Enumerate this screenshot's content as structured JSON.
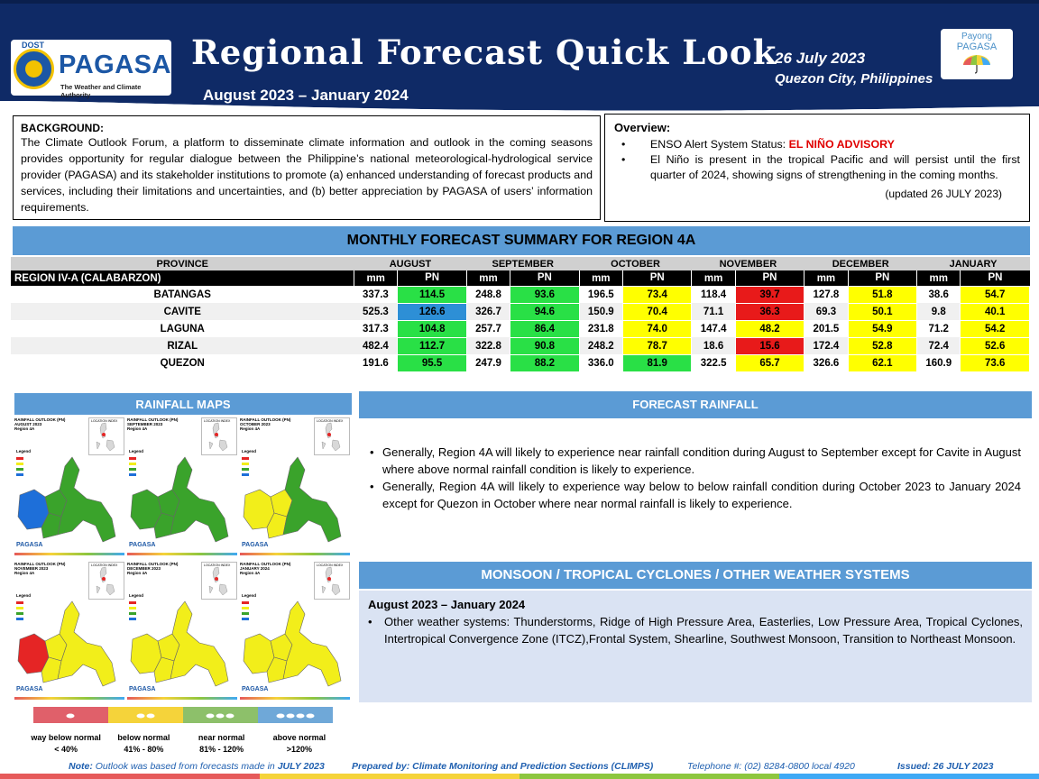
{
  "header": {
    "logo_dost": "DOST",
    "logo_name": "PAGASA",
    "logo_tagline": "The Weather and Climate Authority",
    "title": "Regional Forecast Quick Look",
    "period": "August 2023 – January 2024",
    "date": "26 July 2023",
    "place": "Quezon City, Philippines",
    "payong_line1": "Payong",
    "payong_line2": "PAGASA"
  },
  "background": {
    "label": "BACKGROUND:",
    "text": "The Climate Outlook Forum, a platform to disseminate climate information and outlook in the coming seasons provides opportunity for regular dialogue between the Philippine’s national meteorological-hydrological service provider (PAGASA) and its stakeholder institutions to promote (a) enhanced understanding of forecast products and services, including their limitations and uncertainties, and (b) better appreciation by PAGASA of users’ information requirements."
  },
  "overview": {
    "label": "Overview:",
    "status_prefix": "ENSO Alert System Status: ",
    "status": "EL NIÑO ADVISORY",
    "bullet2": "El Niño is present in the tropical Pacific and will persist until the first quarter of 2024, showing signs of strengthening in the coming months.",
    "updated": "(updated 26 JULY 2023)"
  },
  "table": {
    "title": "MONTHLY FORECAST SUMMARY FOR REGION 4A",
    "province_header": "PROVINCE",
    "region_label": "REGION IV-A  (CALABARZON)",
    "mm_label": "mm",
    "pn_label": "PN",
    "months": [
      "AUGUST",
      "SEPTEMBER",
      "OCTOBER",
      "NOVEMBER",
      "DECEMBER",
      "JANUARY"
    ],
    "rows": [
      {
        "province": "BATANGAS",
        "mm": [
          "337.3",
          "248.8",
          "196.5",
          "118.4",
          "127.8",
          "38.6"
        ],
        "pn": [
          "114.5",
          "93.6",
          "73.4",
          "39.7",
          "51.8",
          "54.7"
        ],
        "class": [
          "near normal",
          "near normal",
          "below normal",
          "way below normal",
          "below normal",
          "below normal"
        ]
      },
      {
        "province": "CAVITE",
        "mm": [
          "525.3",
          "326.7",
          "150.9",
          "71.1",
          "69.3",
          "9.8"
        ],
        "pn": [
          "126.6",
          "94.6",
          "70.4",
          "36.3",
          "50.1",
          "40.1"
        ],
        "class": [
          "above normal",
          "near normal",
          "below normal",
          "way below normal",
          "below normal",
          "below normal"
        ]
      },
      {
        "province": "LAGUNA",
        "mm": [
          "317.3",
          "257.7",
          "231.8",
          "147.4",
          "201.5",
          "71.2"
        ],
        "pn": [
          "104.8",
          "86.4",
          "74.0",
          "48.2",
          "54.9",
          "54.2"
        ],
        "class": [
          "near normal",
          "near normal",
          "below normal",
          "below normal",
          "below normal",
          "below normal"
        ]
      },
      {
        "province": "RIZAL",
        "mm": [
          "482.4",
          "322.8",
          "248.2",
          "18.6",
          "172.4",
          "72.4"
        ],
        "pn": [
          "112.7",
          "90.8",
          "78.7",
          "15.6",
          "52.8",
          "52.6"
        ],
        "class": [
          "near normal",
          "near normal",
          "below normal",
          "way below normal",
          "below normal",
          "below normal"
        ]
      },
      {
        "province": "QUEZON",
        "mm": [
          "191.6",
          "247.9",
          "336.0",
          "322.5",
          "326.6",
          "160.9"
        ],
        "pn": [
          "95.5",
          "88.2",
          "81.9",
          "65.7",
          "62.1",
          "73.6"
        ],
        "class": [
          "near normal",
          "near normal",
          "near normal",
          "below normal",
          "below normal",
          "below normal"
        ]
      }
    ]
  },
  "rainfall_maps": {
    "title": "RAINFALL MAPS",
    "map_title_prefix": "RAINFALL OUTLOOK (PN)",
    "region": "Region 4A",
    "legend_label": "Legend",
    "location_label": "LOCATION INDEX",
    "months": [
      "AUGUST 2023",
      "SEPTEMBER 2023",
      "OCTOBER 2023",
      "NOVEMBER 2023",
      "DECEMBER 2023",
      "JANUARY 2024"
    ],
    "logo": "PAGASA",
    "scale": [
      {
        "label": "way below normal",
        "range": "< 40%",
        "color": "#e0606a"
      },
      {
        "label": "below normal",
        "range": "41% -  80%",
        "color": "#f5d33a"
      },
      {
        "label": "near normal",
        "range": "81% - 120%",
        "color": "#8dc06a"
      },
      {
        "label": "above normal",
        "range": ">120%",
        "color": "#6fa8d8"
      }
    ]
  },
  "forecast_rainfall": {
    "title": "FORECAST RAINFALL",
    "bullets": [
      "Generally, Region 4A will likely to experience near rainfall condition during August to September except for Cavite in August where above normal rainfall condition is likely to experience.",
      "Generally, Region 4A will likely to experience way below to below rainfall condition during October 2023 to January 2024 except for Quezon in October where near normal rainfall is likely to experience."
    ]
  },
  "monsoon": {
    "title": "MONSOON / TROPICAL CYCLONES / OTHER WEATHER SYSTEMS",
    "period": "August 2023 – January 2024",
    "bullet": "Other weather systems: Thunderstorms,  Ridge of High Pressure Area,  Easterlies, Low Pressure Area, Tropical Cyclones, Intertropical Convergence Zone (ITCZ),Frontal System, Shearline, Southwest Monsoon, Transition to Northeast Monsoon."
  },
  "footer": {
    "note_label": "Note:",
    "note": " Outlook was based from forecasts made in ",
    "note_month": "JULY 2023",
    "prepared": "Prepared by: Climate Monitoring and Prediction Sections (CLIMPS)",
    "telephone": "Telephone #: (02) 8284-0800 local 4920",
    "issued": "Issued: 26 JULY 2023"
  },
  "colors": {
    "header_navy": "#0f2a66",
    "accent_blue": "#5b9bd5",
    "near_normal": "#29e046",
    "below_normal": "#ffff00",
    "way_below_normal": "#e81a1a",
    "above_normal": "#2d8fd6"
  }
}
